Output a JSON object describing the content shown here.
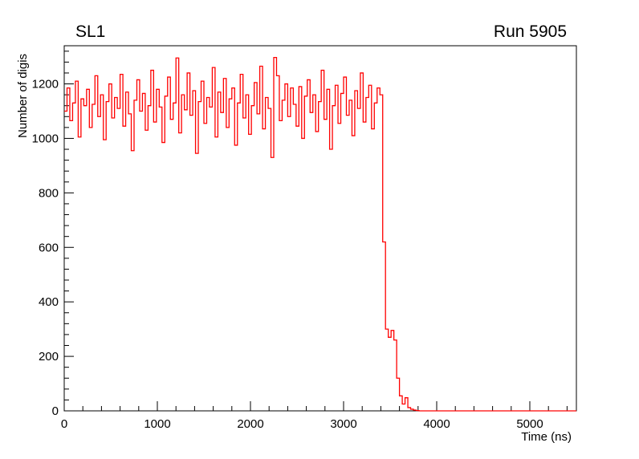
{
  "header": {
    "left_title": "SL1",
    "right_title": "Run 5905"
  },
  "chart_data": {
    "type": "line",
    "style": "histogram-step",
    "title": "SL1",
    "annotation": "Run 5905",
    "xlabel": "Time (ns)",
    "ylabel": "Number of digis",
    "xlim": [
      0,
      5500
    ],
    "ylim": [
      0,
      1340
    ],
    "xticks": [
      0,
      1000,
      2000,
      3000,
      4000,
      5000
    ],
    "yticks": [
      0,
      200,
      400,
      600,
      800,
      1000,
      1200
    ],
    "x_minor_step": 200,
    "y_minor_step": 40,
    "grid": false,
    "legend": "none",
    "line_color": "#ff0000",
    "frame_color": "#000000",
    "background": "#ffffff",
    "x_start": 0,
    "x_step": 30,
    "values": [
      1100,
      1185,
      1065,
      1130,
      1210,
      1005,
      1145,
      1120,
      1180,
      1040,
      1125,
      1230,
      1080,
      1160,
      995,
      1135,
      1200,
      1075,
      1150,
      1110,
      1235,
      1045,
      1170,
      1090,
      955,
      1140,
      1215,
      1100,
      1165,
      1030,
      1120,
      1250,
      1060,
      1180,
      1115,
      985,
      1155,
      1225,
      1070,
      1130,
      1295,
      1020,
      1160,
      1105,
      1240,
      1085,
      1175,
      945,
      1135,
      1210,
      1055,
      1150,
      1115,
      1260,
      1005,
      1170,
      1095,
      1220,
      1040,
      1145,
      1185,
      975,
      1130,
      1235,
      1075,
      1160,
      1015,
      1120,
      1205,
      1090,
      1265,
      1035,
      1150,
      1110,
      930,
      1297,
      1230,
      1065,
      1140,
      1200,
      1080,
      1185,
      1125,
      1045,
      1190,
      1000,
      1155,
      1215,
      1095,
      1160,
      1025,
      1135,
      1250,
      1070,
      1180,
      960,
      1120,
      1195,
      1055,
      1165,
      1225,
      1085,
      1140,
      1010,
      1175,
      1110,
      1240,
      1060,
      1150,
      1195,
      1035,
      1130,
      1185,
      1160,
      620,
      300,
      270,
      295,
      260,
      120,
      55,
      25,
      48,
      12,
      6,
      3,
      1,
      0,
      0,
      0,
      0,
      0,
      0,
      0,
      0,
      0,
      0,
      0,
      0,
      0,
      0,
      0,
      0,
      0,
      0,
      0,
      0,
      0,
      0,
      0,
      0,
      0,
      0,
      0,
      0,
      0,
      0,
      0,
      0,
      0,
      0,
      0,
      0,
      0,
      0,
      0,
      0,
      0,
      0,
      0,
      0,
      0,
      0,
      0,
      0,
      0,
      0,
      0,
      0,
      0,
      0,
      0,
      0,
      0
    ]
  }
}
